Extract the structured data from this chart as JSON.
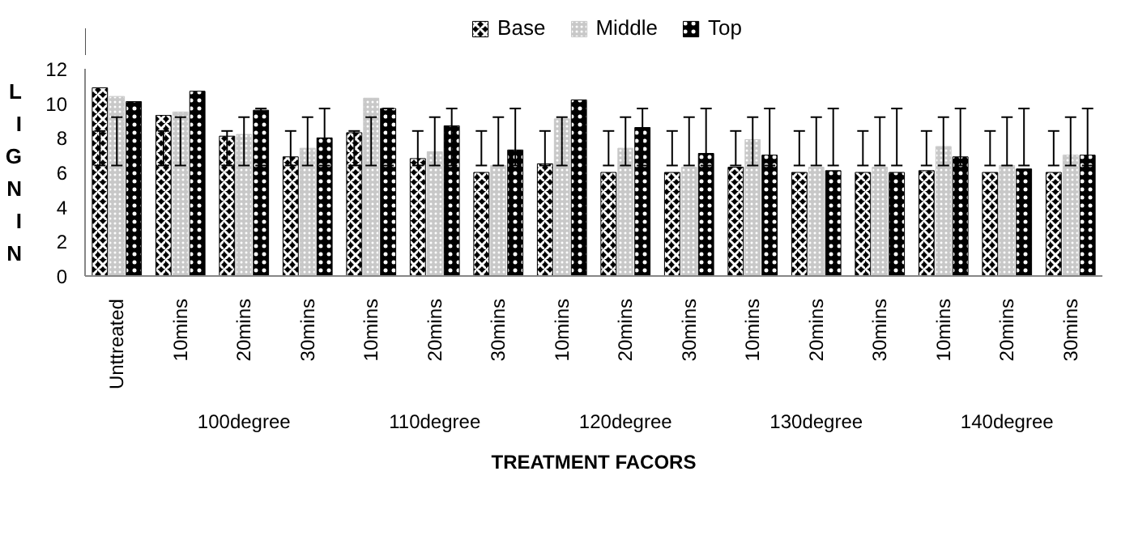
{
  "chart_data": {
    "type": "bar",
    "xlabel": "TREATMENT FACORS",
    "ylabel": "LIGNIN",
    "categories": [
      "Unttreated",
      "10mins",
      "20mins",
      "30mins",
      "10mins",
      "20mins",
      "30mins",
      "10mins",
      "20mins",
      "30mins",
      "10mins",
      "20mins",
      "30mins",
      "10mins",
      "20mins",
      "30mins"
    ],
    "annotations": [
      "100degree",
      "110degree",
      "120degree",
      "130degree",
      "140degree"
    ],
    "series": [
      {
        "name": "Base",
        "color": "#000000",
        "values": [
          10.9,
          9.3,
          8.1,
          6.9,
          8.3,
          6.8,
          6.0,
          6.5,
          6.0,
          6.0,
          6.3,
          6.0,
          6.0,
          6.1,
          6.0,
          6.0
        ],
        "errors": [
          [
            6.4,
            8.4
          ],
          [
            6.4,
            8.4
          ],
          [
            6.4,
            8.4
          ],
          [
            6.4,
            8.4
          ],
          [
            6.4,
            8.4
          ],
          [
            6.4,
            8.4
          ],
          [
            6.4,
            8.4
          ],
          [
            6.4,
            8.4
          ],
          [
            6.4,
            8.4
          ],
          [
            6.4,
            8.4
          ],
          [
            6.4,
            8.4
          ],
          [
            6.4,
            8.4
          ],
          [
            6.4,
            8.4
          ],
          [
            6.4,
            8.4
          ],
          [
            6.4,
            8.4
          ],
          [
            6.4,
            8.4
          ]
        ]
      },
      {
        "name": "Middle",
        "color": "#c8c8c8",
        "values": [
          10.4,
          9.5,
          8.2,
          7.4,
          10.3,
          7.2,
          6.4,
          9.1,
          7.4,
          6.3,
          7.9,
          6.3,
          6.3,
          7.5,
          6.4,
          7.0
        ],
        "errors": [
          [
            6.4,
            9.2
          ],
          [
            6.4,
            9.2
          ],
          [
            6.4,
            9.2
          ],
          [
            6.4,
            9.2
          ],
          [
            6.4,
            9.2
          ],
          [
            6.4,
            9.2
          ],
          [
            6.4,
            9.2
          ],
          [
            6.4,
            9.2
          ],
          [
            6.4,
            9.2
          ],
          [
            6.4,
            9.2
          ],
          [
            6.4,
            9.2
          ],
          [
            6.4,
            9.2
          ],
          [
            6.4,
            9.2
          ],
          [
            6.4,
            9.2
          ],
          [
            6.4,
            9.2
          ],
          [
            6.4,
            9.2
          ]
        ]
      },
      {
        "name": "Top",
        "color": "#000000",
        "values": [
          10.1,
          10.7,
          9.6,
          8.0,
          9.7,
          8.7,
          7.3,
          10.2,
          8.6,
          7.1,
          7.0,
          6.1,
          6.0,
          6.9,
          6.2,
          7.0
        ],
        "errors": [
          null,
          null,
          [
            6.4,
            9.7
          ],
          [
            6.4,
            9.7
          ],
          [
            6.4,
            9.7
          ],
          [
            6.4,
            9.7
          ],
          [
            6.4,
            9.7
          ],
          null,
          [
            6.4,
            9.7
          ],
          [
            6.4,
            9.7
          ],
          [
            6.4,
            9.7
          ],
          [
            6.4,
            9.7
          ],
          [
            6.4,
            9.7
          ],
          [
            6.4,
            9.7
          ],
          [
            6.4,
            9.7
          ],
          [
            6.4,
            9.7
          ]
        ]
      }
    ],
    "ylim": [
      0,
      12
    ],
    "yticks": [
      0,
      2,
      4,
      6,
      8,
      10,
      12
    ],
    "grid": false,
    "legend": "top"
  }
}
